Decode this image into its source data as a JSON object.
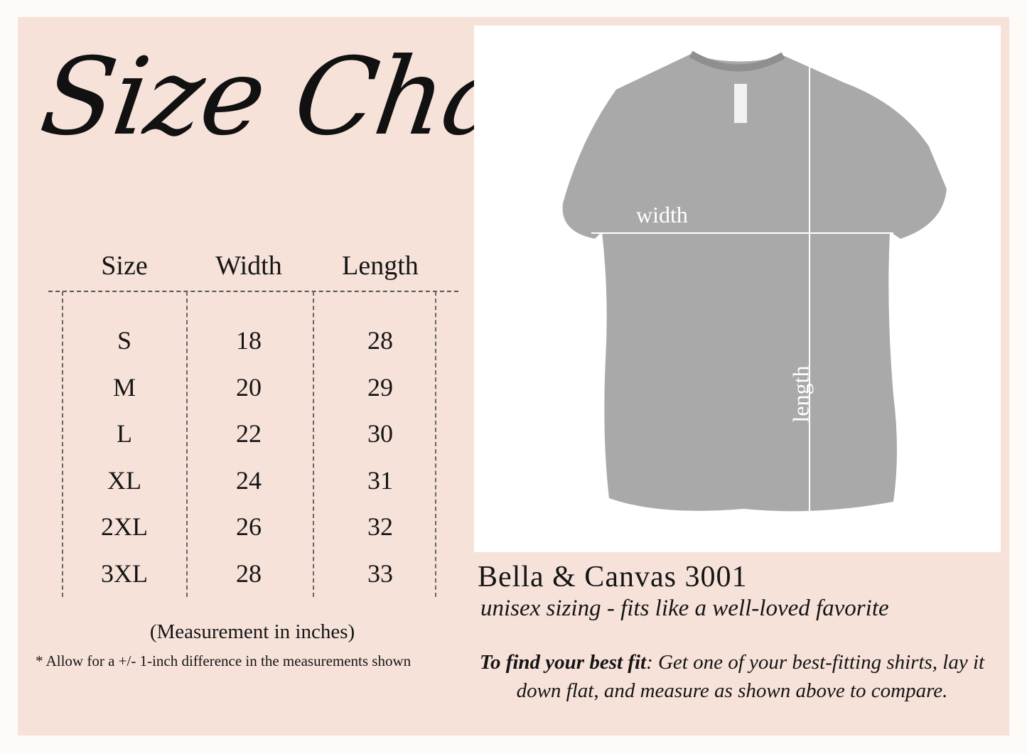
{
  "title": "Size Chart",
  "table": {
    "headers": [
      "Size",
      "Width",
      "Length"
    ],
    "rows": [
      [
        "S",
        "18",
        "28"
      ],
      [
        "M",
        "20",
        "29"
      ],
      [
        "L",
        "22",
        "30"
      ],
      [
        "XL",
        "24",
        "31"
      ],
      [
        "2XL",
        "26",
        "32"
      ],
      [
        "3XL",
        "28",
        "33"
      ]
    ]
  },
  "measurement_note": "(Measurement in inches)",
  "allowance_note": "* Allow for a +/- 1-inch difference in the measurements shown",
  "photo": {
    "width_label": "width",
    "length_label": "length",
    "shirt_color": "#a9a9a9"
  },
  "brand": "Bella & Canvas 3001",
  "tagline": "unisex sizing - fits like a well-loved favorite",
  "fit": {
    "lead": "To find your best fit",
    "text": ": Get one of your best-fitting shirts, lay it down flat, and measure as shown above to compare."
  },
  "colors": {
    "background": "#f6e2d9",
    "text": "#151515"
  }
}
